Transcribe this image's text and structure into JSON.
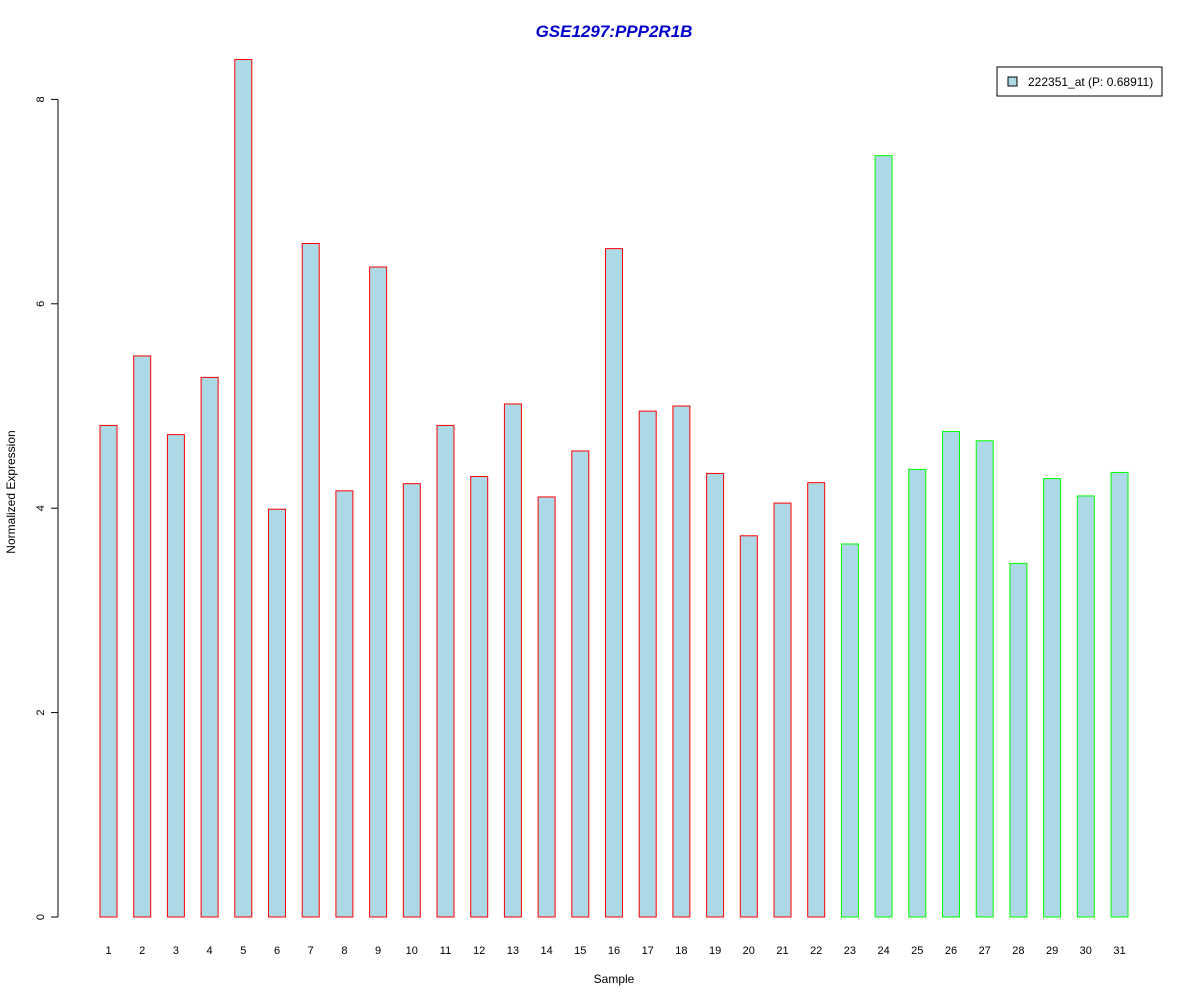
{
  "chart_data": {
    "type": "bar",
    "title": "GSE1297:PPP2R1B",
    "xlabel": "Sample",
    "ylabel": "Normalized Expression",
    "ylim": [
      0,
      8.4
    ],
    "y_ticks": [
      0,
      2,
      4,
      6,
      8
    ],
    "grid": false,
    "legend_position": "top-right",
    "categories": [
      "1",
      "2",
      "3",
      "4",
      "5",
      "6",
      "7",
      "8",
      "9",
      "10",
      "11",
      "12",
      "13",
      "14",
      "15",
      "16",
      "17",
      "18",
      "19",
      "20",
      "21",
      "22",
      "23",
      "24",
      "25",
      "26",
      "27",
      "28",
      "29",
      "30",
      "31"
    ],
    "series": [
      {
        "name": "222351_at (P: 0.68911)",
        "values": [
          4.81,
          5.49,
          4.72,
          5.28,
          8.39,
          3.99,
          6.59,
          4.17,
          6.36,
          4.24,
          4.81,
          4.31,
          5.02,
          4.11,
          4.56,
          6.54,
          4.95,
          5.0,
          4.34,
          3.73,
          4.05,
          4.25,
          3.65,
          7.45,
          4.38,
          4.75,
          4.66,
          3.46,
          4.29,
          4.12,
          4.35
        ],
        "groups": [
          "red",
          "red",
          "red",
          "red",
          "red",
          "red",
          "red",
          "red",
          "red",
          "red",
          "red",
          "red",
          "red",
          "red",
          "red",
          "red",
          "red",
          "red",
          "red",
          "red",
          "red",
          "red",
          "green",
          "green",
          "green",
          "green",
          "green",
          "green",
          "green",
          "green",
          "green"
        ]
      }
    ],
    "colors": {
      "title": "#0000cc",
      "bar_fill": "#add8e6",
      "group_red": "#ff0000",
      "group_green": "#00ff00"
    }
  }
}
